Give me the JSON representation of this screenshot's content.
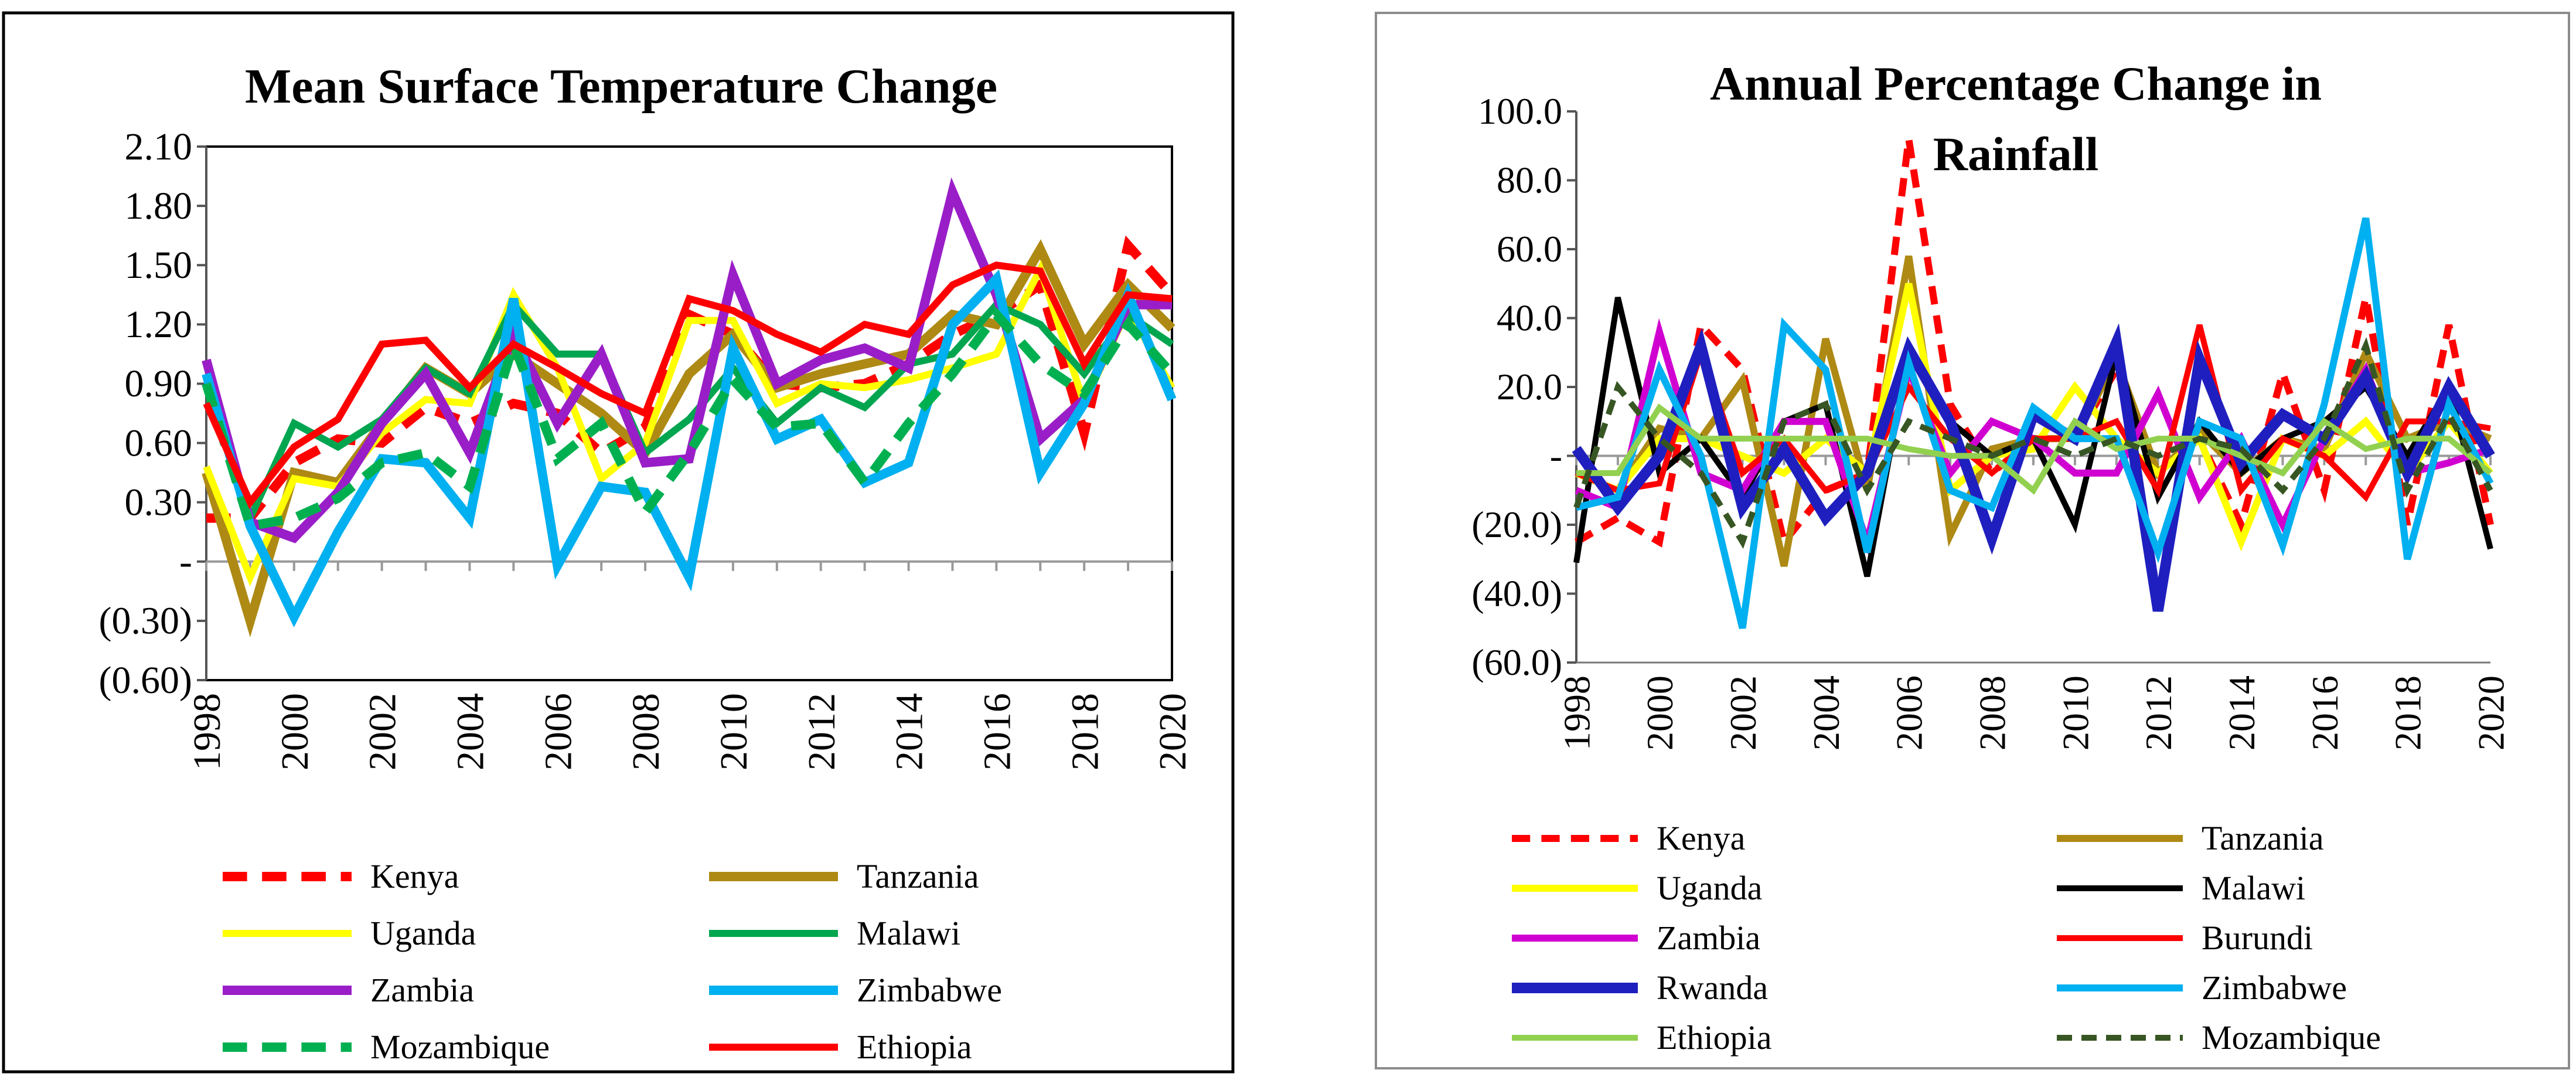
{
  "chart_data": [
    {
      "type": "line",
      "title": "Mean Surface Temperature Change",
      "xlabel": "",
      "ylabel": "",
      "ylim": [
        -0.6,
        2.1
      ],
      "yticks": [
        2.1,
        1.8,
        1.5,
        1.2,
        0.9,
        0.6,
        0.3,
        0,
        -0.3,
        -0.6
      ],
      "ytick_labels": [
        "2.10",
        "1.80",
        "1.50",
        "1.20",
        "0.90",
        "0.60",
        "0.30",
        "-",
        "(0.30)",
        "(0.60)"
      ],
      "x": [
        1998,
        1999,
        2000,
        2001,
        2002,
        2003,
        2004,
        2005,
        2006,
        2007,
        2008,
        2009,
        2010,
        2011,
        2012,
        2013,
        2014,
        2015,
        2016,
        2017,
        2018,
        2019,
        2020
      ],
      "xtick_labels": [
        "1998",
        "2000",
        "2002",
        "2004",
        "2006",
        "2008",
        "2010",
        "2012",
        "2014",
        "2016",
        "2018",
        "2020"
      ],
      "grid": false,
      "legend": "bottom",
      "series": [
        {
          "name": "Kenya",
          "color": "#ff0000",
          "dash": true,
          "width": 16,
          "values": [
            0.22,
            0.22,
            0.5,
            0.62,
            0.6,
            0.78,
            0.7,
            0.8,
            0.75,
            0.55,
            0.68,
            1.25,
            1.15,
            0.9,
            0.88,
            0.9,
            1.0,
            1.15,
            1.25,
            1.4,
            0.65,
            1.6,
            1.35
          ]
        },
        {
          "name": "Tanzania",
          "color": "#ae8a14",
          "dash": false,
          "width": 16,
          "values": [
            0.45,
            -0.3,
            0.45,
            0.4,
            0.7,
            0.98,
            0.85,
            1.05,
            0.9,
            0.75,
            0.55,
            0.95,
            1.15,
            0.88,
            0.95,
            1.0,
            1.05,
            1.25,
            1.2,
            1.58,
            1.1,
            1.4,
            1.18
          ]
        },
        {
          "name": "Uganda",
          "color": "#ffff00",
          "dash": false,
          "width": 12,
          "values": [
            0.48,
            -0.08,
            0.42,
            0.38,
            0.65,
            0.82,
            0.8,
            1.35,
            0.98,
            0.42,
            0.6,
            1.22,
            1.22,
            0.8,
            0.9,
            0.88,
            0.92,
            0.98,
            1.05,
            1.48,
            0.8,
            1.28,
            0.88
          ]
        },
        {
          "name": "Malawi",
          "color": "#00a550",
          "dash": false,
          "width": 12,
          "values": [
            0.88,
            0.22,
            0.7,
            0.58,
            0.72,
            0.98,
            0.85,
            1.3,
            1.05,
            1.05,
            0.55,
            0.72,
            0.98,
            0.7,
            0.88,
            0.78,
            1.0,
            1.05,
            1.3,
            1.2,
            0.95,
            1.25,
            1.1
          ]
        },
        {
          "name": "Zambia",
          "color": "#9a1ec8",
          "dash": false,
          "width": 16,
          "values": [
            1.02,
            0.2,
            0.12,
            0.35,
            0.7,
            0.95,
            0.55,
            1.15,
            0.7,
            1.05,
            0.5,
            0.52,
            1.45,
            0.9,
            1.02,
            1.08,
            0.98,
            1.87,
            1.35,
            0.62,
            0.82,
            1.3,
            1.3
          ]
        },
        {
          "name": "Zimbabwe",
          "color": "#00b0f0",
          "dash": false,
          "width": 16,
          "values": [
            0.95,
            0.18,
            -0.28,
            0.15,
            0.52,
            0.5,
            0.22,
            1.33,
            -0.02,
            0.38,
            0.35,
            -0.08,
            1.08,
            0.62,
            0.72,
            0.4,
            0.5,
            1.2,
            1.43,
            0.45,
            0.8,
            1.35,
            0.82
          ]
        },
        {
          "name": "Mozambique",
          "color": "#00b050",
          "dash": true,
          "width": 16,
          "values": [
            0.9,
            0.18,
            0.22,
            0.32,
            0.5,
            0.55,
            0.38,
            1.1,
            0.52,
            0.7,
            0.25,
            0.55,
            0.92,
            0.68,
            0.7,
            0.4,
            0.7,
            0.95,
            1.25,
            1.0,
            0.85,
            1.2,
            0.95
          ]
        },
        {
          "name": "Ethiopia",
          "color": "#ff0000",
          "dash": false,
          "width": 12,
          "values": [
            0.8,
            0.3,
            0.58,
            0.72,
            1.1,
            1.12,
            0.88,
            1.1,
            0.98,
            0.85,
            0.75,
            1.33,
            1.27,
            1.15,
            1.06,
            1.2,
            1.15,
            1.4,
            1.5,
            1.47,
            1.0,
            1.35,
            1.33
          ]
        }
      ]
    },
    {
      "type": "line",
      "title": "Annual Percentage Change in Rainfall",
      "title_lines": [
        "Annual Percentage Change in",
        "Rainfall"
      ],
      "xlabel": "",
      "ylabel": "",
      "ylim": [
        -60,
        100
      ],
      "yticks": [
        100,
        80,
        60,
        40,
        20,
        0,
        -20,
        -40,
        -60
      ],
      "ytick_labels": [
        "100.0",
        "80.0",
        "60.0",
        "40.0",
        "20.0",
        "-",
        "(20.0)",
        "(40.0)",
        "(60.0)"
      ],
      "x": [
        1998,
        1999,
        2000,
        2001,
        2002,
        2003,
        2004,
        2005,
        2006,
        2007,
        2008,
        2009,
        2010,
        2011,
        2012,
        2013,
        2014,
        2015,
        2016,
        2017,
        2018,
        2019,
        2020
      ],
      "xtick_labels": [
        "1998",
        "2000",
        "2002",
        "2004",
        "2006",
        "2008",
        "2010",
        "2012",
        "2014",
        "2016",
        "2018",
        "2020"
      ],
      "grid": false,
      "legend": "bottom",
      "series": [
        {
          "name": "Kenya",
          "color": "#ff0000",
          "dash": true,
          "width": 12,
          "values": [
            -25,
            -18,
            -25,
            38,
            25,
            -25,
            -10,
            -5,
            92,
            15,
            -5,
            5,
            5,
            25,
            -5,
            5,
            -20,
            24,
            -10,
            46,
            -20,
            38,
            -20
          ]
        },
        {
          "name": "Tanzania",
          "color": "#ae8a14",
          "dash": false,
          "width": 12,
          "values": [
            -5,
            -10,
            8,
            5,
            22,
            -32,
            34,
            -10,
            58,
            -23,
            2,
            5,
            5,
            28,
            -5,
            7,
            -5,
            5,
            2,
            30,
            5,
            10,
            5
          ]
        },
        {
          "name": "Uganda",
          "color": "#ffff00",
          "dash": false,
          "width": 12,
          "values": [
            -5,
            -10,
            5,
            5,
            0,
            -5,
            5,
            -5,
            50,
            -10,
            0,
            2,
            20,
            5,
            -5,
            5,
            -25,
            5,
            0,
            10,
            -5,
            10,
            -5
          ]
        },
        {
          "name": "Malawi",
          "color": "#000000",
          "dash": false,
          "width": 10,
          "values": [
            -31,
            46,
            -5,
            5,
            -12,
            10,
            15,
            -35,
            30,
            10,
            0,
            5,
            -20,
            30,
            -12,
            10,
            -5,
            5,
            10,
            20,
            0,
            20,
            -27
          ]
        },
        {
          "name": "Zambia",
          "color": "#d000d0",
          "dash": false,
          "width": 12,
          "values": [
            -10,
            -15,
            36,
            -5,
            -10,
            10,
            10,
            -25,
            25,
            -5,
            10,
            5,
            -5,
            -5,
            18,
            -12,
            5,
            -20,
            5,
            25,
            -5,
            -2,
            2
          ]
        },
        {
          "name": "Burundi",
          "color": "#ff0000",
          "dash": false,
          "width": 10,
          "values": [
            -5,
            -10,
            -8,
            30,
            -5,
            5,
            -10,
            -5,
            20,
            5,
            -5,
            5,
            5,
            10,
            -10,
            38,
            -10,
            5,
            0,
            -12,
            10,
            10,
            8
          ]
        },
        {
          "name": "Rwanda",
          "color": "#1f1fbf",
          "dash": false,
          "width": 18,
          "values": [
            2,
            -15,
            0,
            32,
            -15,
            2,
            -18,
            -5,
            31,
            10,
            -24,
            12,
            5,
            33,
            -45,
            28,
            -2,
            12,
            5,
            23,
            -5,
            20,
            0
          ]
        },
        {
          "name": "Zimbabwe",
          "color": "#00b0f0",
          "dash": false,
          "width": 12,
          "values": [
            -15,
            -12,
            25,
            0,
            -50,
            38,
            25,
            -28,
            27,
            -10,
            -15,
            14,
            5,
            5,
            -28,
            10,
            5,
            -26,
            15,
            69,
            -30,
            15,
            -8
          ]
        },
        {
          "name": "Ethiopia",
          "color": "#92d050",
          "dash": false,
          "width": 10,
          "values": [
            -5,
            -5,
            14,
            5,
            5,
            5,
            5,
            5,
            2,
            0,
            0,
            -10,
            10,
            2,
            5,
            5,
            0,
            -5,
            10,
            2,
            5,
            5,
            -5
          ]
        },
        {
          "name": "Mozambique",
          "color": "#375623",
          "dash": true,
          "width": 10,
          "values": [
            -15,
            20,
            5,
            -5,
            -25,
            10,
            15,
            -10,
            10,
            5,
            0,
            5,
            0,
            5,
            0,
            5,
            2,
            -10,
            5,
            32,
            -10,
            12,
            -10
          ]
        }
      ]
    }
  ]
}
